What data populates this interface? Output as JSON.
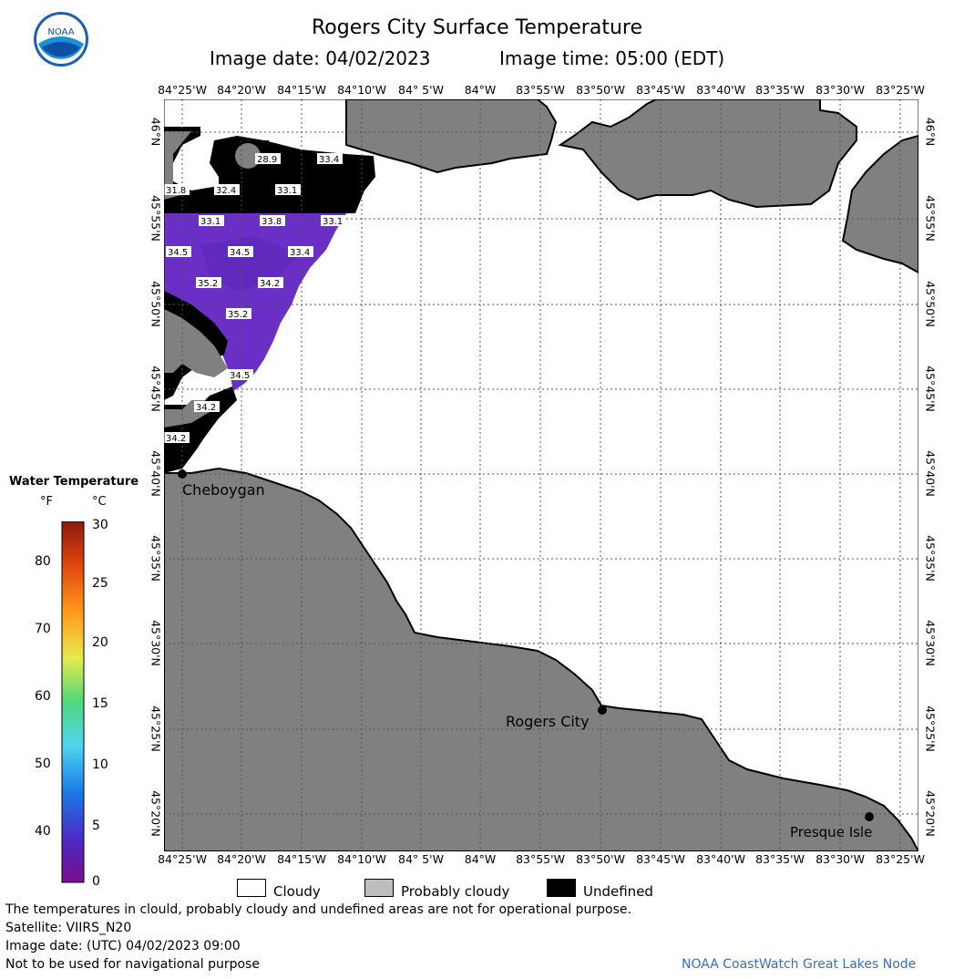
{
  "header": {
    "title": "Rogers City Surface Temperature",
    "image_date": "Image date: 04/02/2023",
    "image_time": "Image time: 05:00 (EDT)"
  },
  "logo": {
    "icon": "noaa-logo",
    "text": "NOAA"
  },
  "map": {
    "lon_labels": [
      "84°25'W",
      "84°20'W",
      "84°15'W",
      "84°10'W",
      "84° 5'W",
      "84°W",
      "83°55'W",
      "83°50'W",
      "83°45'W",
      "83°40'W",
      "83°35'W",
      "83°30'W",
      "83°25'W"
    ],
    "lat_labels": [
      "46°N",
      "45°55'N",
      "45°50'N",
      "45°45'N",
      "45°40'N",
      "45°35'N",
      "45°30'N",
      "45°25'N",
      "45°20'N"
    ],
    "cities": [
      {
        "name": "Cheboygan"
      },
      {
        "name": "Rogers City"
      },
      {
        "name": "Presque Isle"
      }
    ],
    "temperature_labels": [
      "28.9",
      "33.4",
      "31.8",
      "32.4",
      "33.1",
      "33.1",
      "33.8",
      "33.1",
      "34.5",
      "34.5",
      "33.4",
      "35.2",
      "34.2",
      "35.2",
      "34.5",
      "34.2",
      "34.2"
    ],
    "colors": {
      "land": "#808080",
      "undefined": "#000000",
      "cloudy": "#ffffff",
      "water": "#6a2fc4"
    }
  },
  "colorbar": {
    "title": "Water Temperature",
    "unit_f": "°F",
    "unit_c": "°C",
    "f_ticks": [
      "80",
      "70",
      "60",
      "50",
      "40"
    ],
    "c_ticks": [
      "30",
      "25",
      "20",
      "15",
      "10",
      "5",
      "0"
    ]
  },
  "legend": {
    "cloudy": "Cloudy",
    "probably_cloudy": "Probably cloudy",
    "undefined": "Undefined"
  },
  "footer": {
    "note1": "The temperatures in clould, probably cloudy and undefined areas are not for operational purpose.",
    "satellite": "Satellite: VIIRS_N20",
    "image_date_utc": "Image date: (UTC) 04/02/2023  09:00",
    "nav_note": "Not to be used for navigational purpose",
    "credit": "NOAA CoastWatch Great Lakes Node"
  }
}
